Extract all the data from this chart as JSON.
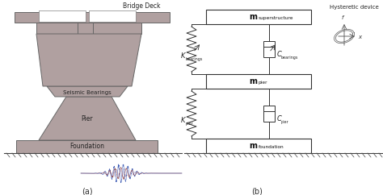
{
  "bg_color": "#ffffff",
  "pier_color": "#b0a0a0",
  "pier_edge": "#666666",
  "bearing_color": "#607080",
  "box_edge": "#333333",
  "spring_color": "#333333",
  "seismic_colors": [
    "#2244aa",
    "#883333",
    "#554488"
  ],
  "label_a": "(a)",
  "label_b": "(b)",
  "text_bridge_deck": "Bridge Deck",
  "text_seismic": "Seismic Bearings",
  "text_pier": "Pier",
  "text_foundation": "Foundation",
  "text_hysteretic": "Hysteretic device",
  "figsize": [
    4.74,
    2.42
  ],
  "dpi": 100
}
